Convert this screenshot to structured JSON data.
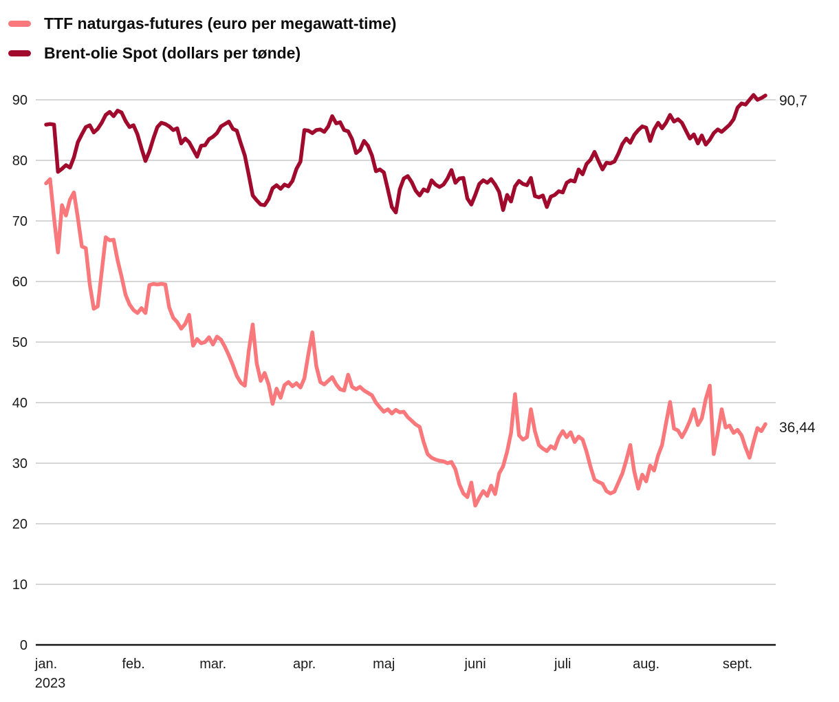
{
  "legend": [
    {
      "label": "TTF naturgas-futures (euro per megawatt-time)",
      "color": "#F8787B"
    },
    {
      "label": "Brent-olie Spot (dollars per tønde)",
      "color": "#A00B2D"
    }
  ],
  "colors": {
    "ttf": "#F8787B",
    "brent": "#A00B2D",
    "gridline": "#c9c9c9",
    "axis": "#161616",
    "tick_text": "#1a1a1a"
  },
  "chart_data": {
    "type": "line",
    "title": "",
    "xlabel": "",
    "ylabel": "",
    "x_range": "jan. 2023 - sept. 2023 (daglige priser)",
    "ylim": [
      0,
      90
    ],
    "y_ticks": [
      0,
      10,
      20,
      30,
      40,
      50,
      60,
      70,
      80,
      90
    ],
    "grid": true,
    "legend_position": "top-left",
    "year_label": "2023",
    "months": [
      {
        "label": "jan.",
        "index": 0
      },
      {
        "label": "feb.",
        "index": 22
      },
      {
        "label": "mar.",
        "index": 42
      },
      {
        "label": "apr.",
        "index": 65
      },
      {
        "label": "maj",
        "index": 85
      },
      {
        "label": "juni",
        "index": 108
      },
      {
        "label": "juli",
        "index": 130
      },
      {
        "label": "aug.",
        "index": 151
      },
      {
        "label": "sept.",
        "index": 174
      }
    ],
    "series": [
      {
        "name": "TTF naturgas-futures (euro per megawatt-time)",
        "color": "#F8787B",
        "end_label": "36,44",
        "end_value": 36.44,
        "values": [
          76.2,
          76.9,
          70.5,
          64.8,
          72.6,
          70.9,
          73.5,
          74.7,
          70.5,
          65.8,
          65.5,
          59.5,
          55.5,
          55.9,
          61.6,
          67.3,
          66.8,
          66.9,
          63.5,
          60.8,
          57.8,
          56.2,
          55.3,
          54.8,
          55.6,
          54.8,
          59.4,
          59.6,
          59.5,
          59.6,
          59.5,
          55.7,
          54.0,
          53.3,
          52.2,
          53.0,
          54.5,
          49.4,
          50.5,
          49.8,
          50.0,
          50.8,
          49.6,
          50.9,
          50.4,
          49.2,
          47.8,
          46.2,
          44.4,
          43.3,
          42.8,
          48.5,
          52.9,
          46.5,
          43.6,
          44.9,
          43.0,
          39.8,
          42.3,
          40.8,
          42.9,
          43.4,
          42.7,
          43.2,
          42.5,
          44.0,
          48.0,
          51.6,
          46.0,
          43.4,
          43.0,
          43.6,
          44.2,
          43.0,
          42.2,
          42.0,
          44.6,
          42.6,
          42.2,
          42.6,
          42.0,
          41.6,
          41.2,
          40.0,
          39.2,
          38.5,
          38.9,
          38.2,
          38.8,
          38.4,
          38.5,
          37.6,
          37.0,
          36.4,
          36.0,
          33.5,
          31.5,
          30.9,
          30.6,
          30.4,
          30.3,
          30.0,
          30.2,
          29.0,
          26.5,
          25.0,
          24.4,
          26.8,
          23.0,
          24.3,
          25.4,
          24.6,
          26.3,
          24.9,
          28.3,
          29.5,
          31.9,
          35.0,
          41.4,
          34.6,
          33.9,
          34.3,
          38.9,
          35.3,
          33.0,
          32.4,
          32.0,
          32.8,
          32.4,
          34.2,
          35.3,
          34.3,
          35.1,
          33.5,
          34.4,
          33.9,
          31.9,
          29.4,
          27.3,
          26.9,
          26.6,
          25.4,
          25.0,
          25.3,
          26.8,
          28.3,
          30.5,
          33.0,
          28.6,
          25.8,
          28.1,
          27.0,
          29.6,
          28.8,
          31.3,
          33.0,
          36.6,
          40.1,
          35.7,
          35.4,
          34.3,
          35.5,
          37.0,
          38.9,
          36.3,
          37.4,
          40.6,
          42.8,
          31.5,
          35.0,
          38.9,
          35.9,
          36.2,
          35.0,
          35.5,
          34.6,
          32.6,
          30.9,
          33.5,
          35.8,
          35.3,
          36.44
        ]
      },
      {
        "name": "Brent-olie Spot (dollars per tønde)",
        "color": "#A00B2D",
        "end_label": "90,7",
        "end_value": 90.7,
        "values": [
          85.9,
          86.0,
          85.9,
          78.1,
          78.6,
          79.2,
          78.8,
          80.5,
          83.0,
          84.3,
          85.5,
          85.8,
          84.6,
          85.2,
          86.2,
          87.5,
          88.0,
          87.3,
          88.2,
          87.9,
          86.5,
          85.5,
          85.8,
          84.3,
          82.0,
          79.9,
          81.5,
          83.6,
          85.5,
          86.2,
          86.0,
          85.6,
          85.0,
          85.3,
          82.8,
          83.6,
          83.0,
          81.8,
          80.6,
          82.4,
          82.5,
          83.5,
          83.9,
          84.5,
          85.6,
          86.0,
          86.4,
          85.2,
          84.9,
          82.8,
          80.8,
          77.6,
          74.2,
          73.4,
          72.7,
          72.6,
          73.6,
          75.4,
          75.9,
          75.3,
          76.0,
          75.7,
          76.6,
          78.6,
          79.8,
          85.0,
          84.9,
          84.5,
          85.0,
          85.1,
          84.7,
          85.6,
          87.3,
          86.1,
          86.3,
          85.0,
          84.8,
          83.5,
          81.2,
          81.7,
          83.2,
          82.4,
          80.8,
          78.2,
          78.5,
          78.0,
          75.2,
          72.3,
          71.4,
          75.2,
          77.0,
          77.4,
          76.4,
          75.0,
          74.2,
          75.2,
          74.9,
          76.7,
          76.0,
          75.6,
          76.0,
          77.0,
          78.4,
          76.3,
          77.0,
          77.1,
          73.7,
          72.7,
          74.3,
          76.1,
          76.7,
          76.3,
          76.9,
          76.0,
          74.8,
          71.8,
          74.3,
          73.2,
          75.7,
          76.6,
          76.1,
          75.9,
          77.1,
          74.1,
          73.9,
          74.2,
          72.3,
          74.0,
          74.3,
          74.9,
          74.7,
          76.3,
          76.7,
          76.5,
          78.5,
          77.7,
          79.4,
          80.1,
          81.4,
          79.9,
          78.5,
          79.6,
          79.5,
          79.8,
          81.1,
          82.7,
          83.6,
          82.9,
          84.2,
          85.0,
          85.6,
          85.4,
          83.2,
          85.1,
          86.2,
          85.3,
          86.2,
          87.5,
          86.4,
          86.8,
          86.2,
          84.9,
          83.6,
          84.3,
          82.8,
          84.1,
          82.6,
          83.4,
          84.5,
          85.1,
          84.7,
          85.3,
          85.9,
          86.8,
          88.7,
          89.4,
          89.2,
          90.0,
          90.8,
          90.0,
          90.3,
          90.7
        ]
      }
    ]
  }
}
